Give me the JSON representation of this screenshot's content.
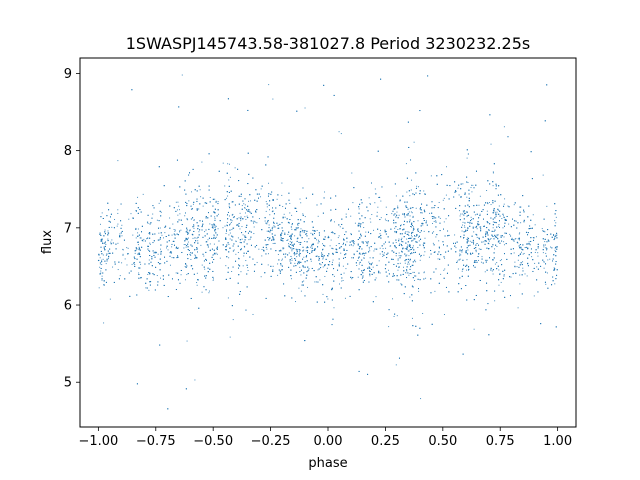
{
  "chart_data": {
    "type": "scatter",
    "title": "1SWASPJ145743.58-381027.8 Period 3230232.25s",
    "xlabel": "phase",
    "ylabel": "flux",
    "xlim": [
      -1.08,
      1.08
    ],
    "ylim": [
      4.42,
      9.2
    ],
    "x_ticks": [
      -1.0,
      -0.75,
      -0.5,
      -0.25,
      0.0,
      0.25,
      0.5,
      0.75,
      1.0
    ],
    "x_tick_labels": [
      "−1.00",
      "−0.75",
      "−0.50",
      "−0.25",
      "0.00",
      "0.25",
      "0.50",
      "0.75",
      "1.00"
    ],
    "y_ticks": [
      5,
      6,
      7,
      8,
      9
    ],
    "y_tick_labels": [
      "5",
      "6",
      "7",
      "8",
      "9"
    ],
    "grid": false,
    "legend": "none",
    "marker_color": "#1f77b4",
    "series": [
      {
        "phase_range": [
          -1.0,
          1.0
        ],
        "flux_typical_range": [
          6.2,
          7.4
        ],
        "flux_full_range": [
          4.6,
          9.0
        ],
        "approx_point_count": 16000,
        "envelope": [
          {
            "phase": -1.0,
            "center": 6.7,
            "spread": 0.35
          },
          {
            "phase": -0.9,
            "center": 6.75,
            "spread": 0.4
          },
          {
            "phase": -0.75,
            "center": 6.8,
            "spread": 0.45
          },
          {
            "phase": -0.6,
            "center": 6.85,
            "spread": 0.45
          },
          {
            "phase": -0.45,
            "center": 7.0,
            "spread": 0.5
          },
          {
            "phase": -0.3,
            "center": 6.95,
            "spread": 0.45
          },
          {
            "phase": -0.15,
            "center": 6.75,
            "spread": 0.35
          },
          {
            "phase": 0.0,
            "center": 6.7,
            "spread": 0.35
          },
          {
            "phase": 0.1,
            "center": 6.75,
            "spread": 0.4
          },
          {
            "phase": 0.25,
            "center": 6.8,
            "spread": 0.45
          },
          {
            "phase": 0.4,
            "center": 6.85,
            "spread": 0.45
          },
          {
            "phase": 0.55,
            "center": 7.0,
            "spread": 0.5
          },
          {
            "phase": 0.7,
            "center": 6.95,
            "spread": 0.45
          },
          {
            "phase": 0.85,
            "center": 6.75,
            "spread": 0.35
          },
          {
            "phase": 1.0,
            "center": 6.7,
            "spread": 0.35
          }
        ]
      }
    ]
  }
}
